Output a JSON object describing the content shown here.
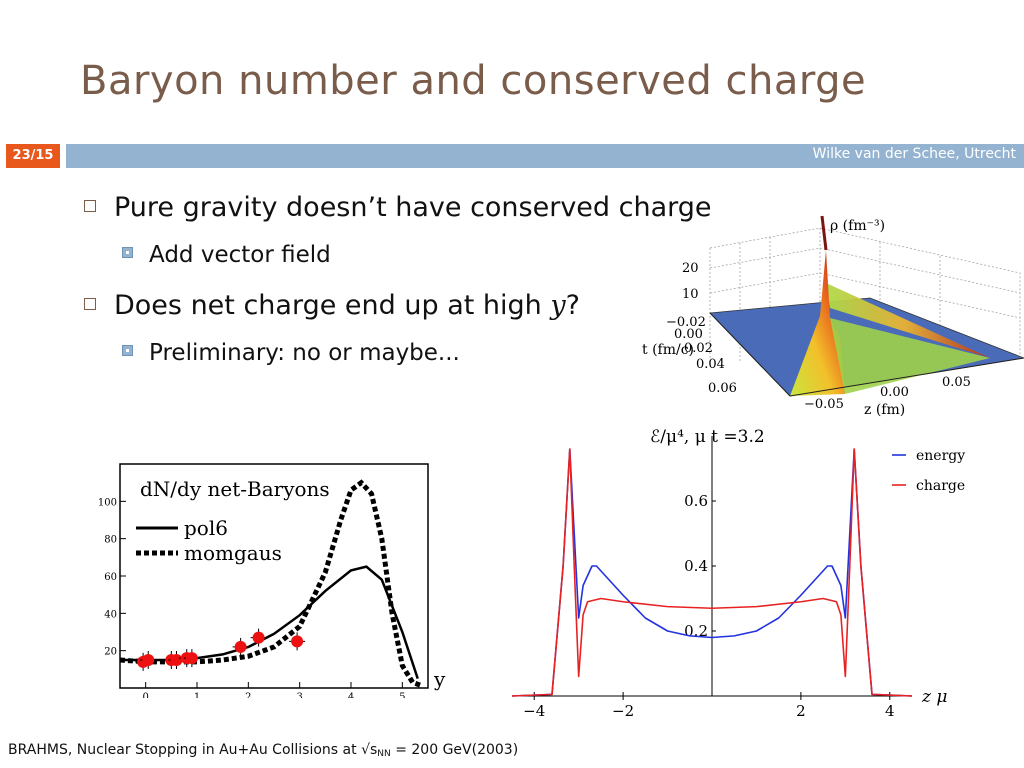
{
  "slide": {
    "title": "Baryon number and conserved charge",
    "slide_number": "23/15",
    "author": "Wilke van der Schee, Utrecht",
    "bullets": [
      {
        "text": "Pure gravity doesn’t have conserved charge",
        "sub": "Add vector field"
      },
      {
        "text_before": "Does net charge end up at high ",
        "var": "y",
        "text_after": "?",
        "sub": "Preliminary: no or maybe..."
      }
    ],
    "footer": {
      "prefix": "BRAHMS, Nuclear Stopping in Au+Au Collisions at √s",
      "subscript": "NN",
      "suffix": " = 200 GeV(2003)"
    }
  },
  "colors": {
    "title": "#7a5c4a",
    "band": "#93b3d1",
    "slide_num_bg": "#e8571b",
    "energy": "#2233dd",
    "charge": "#e82222",
    "data_points": "#ee1111",
    "surface_floor": "#4a6bb8"
  },
  "figure_3d": {
    "zlabel": "ρ (fm⁻³)",
    "zticks": [
      "20",
      "10",
      "0"
    ],
    "tlabel": "t (fm/c)",
    "tticks": [
      "−0.02",
      "0.00",
      "0.02",
      "0.04",
      "0.06"
    ],
    "zaxislabel": "z (fm)",
    "zaxisticks": [
      "−0.05",
      "0.00",
      "0.05"
    ]
  },
  "chart_data": [
    {
      "type": "line",
      "title": "dN/dy net-Baryons",
      "xlabel": "y",
      "ylabel": "",
      "xlim": [
        -0.5,
        5.5
      ],
      "ylim": [
        0,
        120
      ],
      "xticks": [
        "0",
        "1",
        "2",
        "3",
        "4",
        "5"
      ],
      "yticks": [
        "20",
        "40",
        "60",
        "80",
        "100"
      ],
      "series": [
        {
          "name": "pol6",
          "style": "solid",
          "x": [
            -0.5,
            0,
            0.5,
            1,
            1.5,
            2,
            2.5,
            3,
            3.5,
            4,
            4.3,
            4.6,
            5,
            5.3
          ],
          "y": [
            15,
            15,
            15,
            16,
            18,
            22,
            29,
            39,
            52,
            63,
            65,
            58,
            30,
            5
          ]
        },
        {
          "name": "momgaus",
          "style": "dotted",
          "x": [
            -0.5,
            0,
            0.5,
            1,
            1.5,
            2,
            2.5,
            3,
            3.5,
            3.8,
            4,
            4.2,
            4.4,
            4.6,
            4.8,
            5,
            5.2,
            5.4
          ],
          "y": [
            15,
            14,
            14,
            14,
            15,
            17,
            22,
            33,
            62,
            90,
            106,
            110,
            104,
            80,
            40,
            12,
            3,
            1
          ]
        }
      ],
      "points": {
        "name": "data",
        "x": [
          -0.05,
          0.05,
          0.5,
          0.6,
          0.8,
          0.9,
          1.85,
          2.2,
          2.95
        ],
        "y": [
          14,
          15,
          15,
          15,
          16,
          16,
          22,
          27,
          25
        ]
      }
    },
    {
      "type": "line",
      "title": "ℰ/μ⁴, μ t =3.2",
      "xlabel": "z μ",
      "ylabel": "",
      "xlim": [
        -4.5,
        4.5
      ],
      "ylim": [
        0,
        0.8
      ],
      "xticks": [
        "−4",
        "−2",
        "2",
        "4"
      ],
      "yticks": [
        "0.2",
        "0.4",
        "0.6"
      ],
      "series": [
        {
          "name": "energy",
          "x": [
            -4.5,
            -3.6,
            -3.35,
            -3.2,
            -3.1,
            -3.0,
            -2.9,
            -2.7,
            -2.6,
            -2.4,
            -2.0,
            -1.5,
            -1.0,
            -0.5,
            0,
            0.5,
            1.0,
            1.5,
            2.0,
            2.4,
            2.6,
            2.7,
            2.9,
            3.0,
            3.1,
            3.2,
            3.35,
            3.6,
            4.5
          ],
          "y": [
            0,
            0.005,
            0.4,
            0.76,
            0.5,
            0.24,
            0.34,
            0.4,
            0.4,
            0.37,
            0.31,
            0.24,
            0.2,
            0.185,
            0.18,
            0.185,
            0.2,
            0.24,
            0.31,
            0.37,
            0.4,
            0.4,
            0.34,
            0.24,
            0.5,
            0.76,
            0.4,
            0.005,
            0
          ]
        },
        {
          "name": "charge",
          "x": [
            -4.5,
            -3.6,
            -3.35,
            -3.2,
            -3.1,
            -3.0,
            -2.9,
            -2.8,
            -2.5,
            -2.0,
            -1.0,
            0,
            1.0,
            2.0,
            2.5,
            2.8,
            2.9,
            3.0,
            3.1,
            3.2,
            3.35,
            3.6,
            4.5
          ],
          "y": [
            0,
            0.005,
            0.4,
            0.76,
            0.4,
            0.06,
            0.25,
            0.29,
            0.3,
            0.29,
            0.275,
            0.27,
            0.275,
            0.29,
            0.3,
            0.29,
            0.25,
            0.06,
            0.4,
            0.76,
            0.4,
            0.005,
            0
          ]
        }
      ]
    }
  ]
}
